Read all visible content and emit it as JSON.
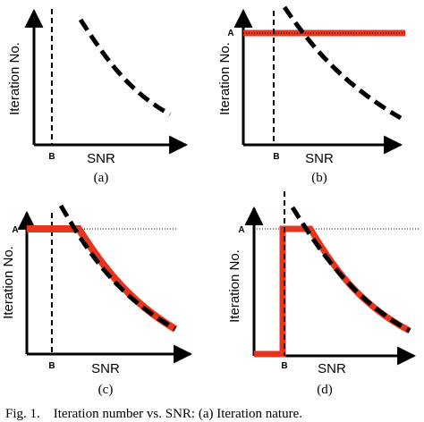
{
  "panels": [
    {
      "id": "a",
      "y_label": "Iteration No.",
      "x_label": "SNR",
      "b_label": "B",
      "a_label": "",
      "sub_label": "(a)"
    },
    {
      "id": "b",
      "y_label": "Iteration No.",
      "x_label": "SNR",
      "b_label": "B",
      "a_label": "A",
      "sub_label": "(b)"
    },
    {
      "id": "c",
      "y_label": "Iteration No.",
      "x_label": "SNR",
      "b_label": "B",
      "a_label": "A",
      "sub_label": "(c)"
    },
    {
      "id": "d",
      "y_label": "Iteration No.",
      "x_label": "SNR",
      "b_label": "B",
      "a_label": "A",
      "sub_label": "(d)"
    }
  ],
  "caption": "Fig. 1.    Iteration number vs. SNR: (a) Iteration nature.",
  "colors": {
    "axis": "#000000",
    "curve": "#000000",
    "limit": "#e8341c"
  }
}
